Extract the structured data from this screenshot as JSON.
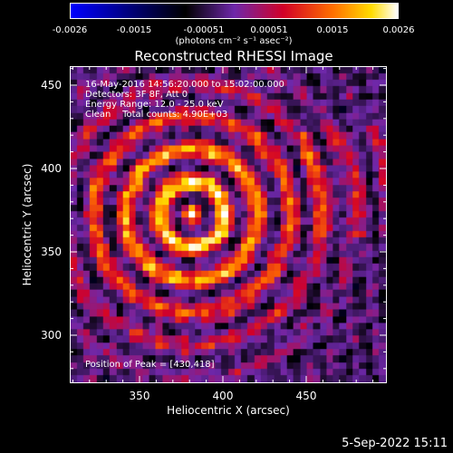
{
  "colorbar": {
    "ticks": [
      "-0.0026",
      "-0.0015",
      "-0.00051",
      "0.00051",
      "0.0015",
      "0.0026"
    ],
    "units": "(photons cm⁻² s⁻¹ asec⁻²)"
  },
  "title": "Reconstructed RHESSI Image",
  "info": {
    "time": "16-May-2016 14:56:20.000 to 15:02:00.000",
    "detectors": "Detectors: 3F 8F, Att 0",
    "energy": "Energy Range: 12.0 - 25.0 keV",
    "clean": "Clean    Total counts: 4.90E+03"
  },
  "peak": "Position of Peak = [430,418]",
  "yaxis": {
    "title": "Heliocentric Y (arcsec)",
    "ticks": [
      "450",
      "400",
      "350",
      "300"
    ]
  },
  "xaxis": {
    "title": "Heliocentric X (arcsec)",
    "ticks": [
      "350",
      "400",
      "450"
    ]
  },
  "date_stamp": "5-Sep-2022 15:11"
}
